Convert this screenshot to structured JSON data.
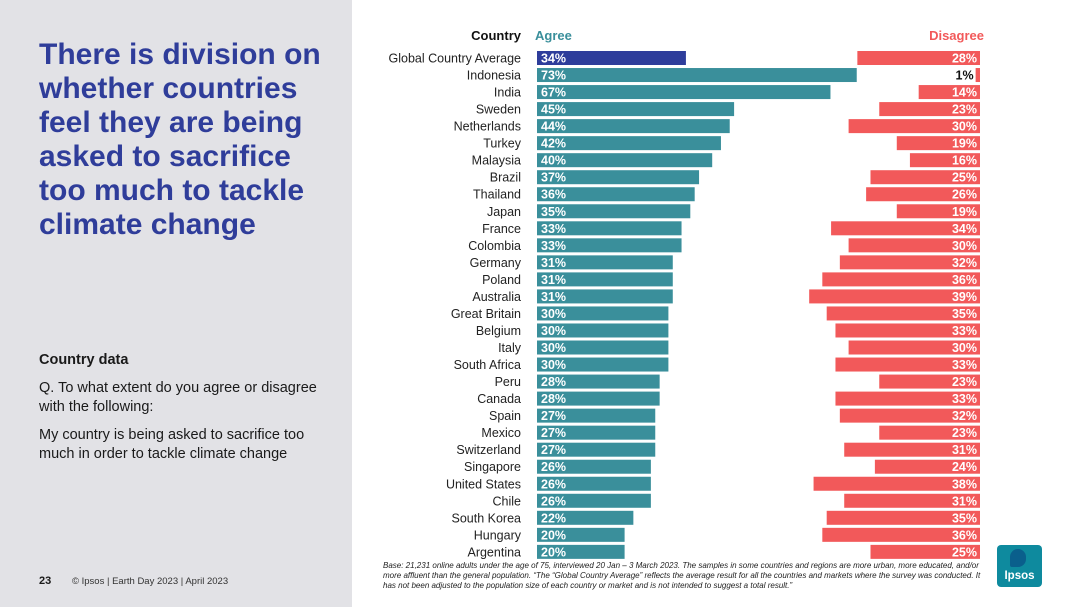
{
  "slide": {
    "title": "There is division on whether countries feel they are being asked to sacrifice too much to tackle climate change",
    "section_heading": "Country data",
    "question": "Q. To what extent do you agree or disagree with the following:",
    "statement": "My country is being asked to sacrifice too much in order to tackle climate change",
    "page_number": "23",
    "footer": "© Ipsos | Earth Day 2023 | April 2023",
    "base_note": "Base: 21,231 online adults under the age of 75, interviewed 20 Jan – 3 March 2023. The samples in some countries and regions are more urban, more educated, and/or more affluent than the general population. “The “Global Country Average” reflects the average result for all the countries and markets where the survey was conducted. It has not been adjusted to the population size of each country or market and is not intended to suggest a total result.”",
    "logo_text": "Ipsos"
  },
  "chart_data": {
    "type": "bar",
    "orientation": "horizontal",
    "title": "",
    "category_header": "Country",
    "categories": [
      "Global Country Average",
      "Indonesia",
      "India",
      "Sweden",
      "Netherlands",
      "Turkey",
      "Malaysia",
      "Brazil",
      "Thailand",
      "Japan",
      "France",
      "Colombia",
      "Germany",
      "Poland",
      "Australia",
      "Great Britain",
      "Belgium",
      "Italy",
      "South Africa",
      "Peru",
      "Canada",
      "Spain",
      "Mexico",
      "Switzerland",
      "Singapore",
      "United States",
      "Chile",
      "South Korea",
      "Hungary",
      "Argentina"
    ],
    "series": [
      {
        "name": "Agree",
        "color": "#3a8f9b",
        "highlight_color": "#2e3d9b",
        "values": [
          34,
          73,
          67,
          45,
          44,
          42,
          40,
          37,
          36,
          35,
          33,
          33,
          31,
          31,
          31,
          30,
          30,
          30,
          30,
          28,
          28,
          27,
          27,
          27,
          26,
          26,
          26,
          22,
          20,
          20
        ]
      },
      {
        "name": "Disagree",
        "color": "#f2595a",
        "values": [
          28,
          1,
          14,
          23,
          30,
          19,
          16,
          25,
          26,
          19,
          34,
          30,
          32,
          36,
          39,
          35,
          33,
          30,
          33,
          23,
          33,
          32,
          23,
          31,
          24,
          38,
          31,
          35,
          36,
          25
        ]
      }
    ],
    "value_suffix": "%",
    "xlim": [
      0,
      100
    ]
  }
}
